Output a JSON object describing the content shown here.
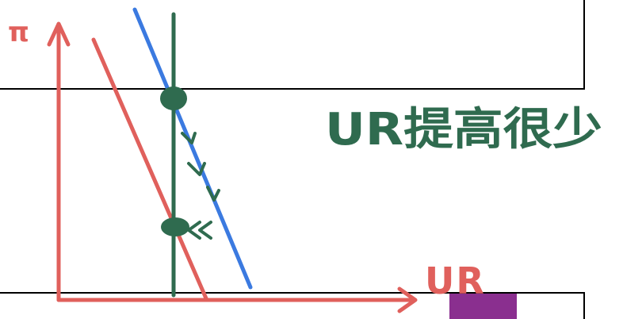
{
  "axes": {
    "y_label": "π",
    "x_label": "UR"
  },
  "annotation": {
    "text": "UR提高很少"
  },
  "colors": {
    "axis": "#e0605c",
    "curve_red": "#e0605c",
    "curve_blue": "#3b7ae0",
    "vertical": "#2f6b4f",
    "annotation": "#2f6b4f",
    "frame": "#000000",
    "purple_box": "#8a2f8f"
  }
}
